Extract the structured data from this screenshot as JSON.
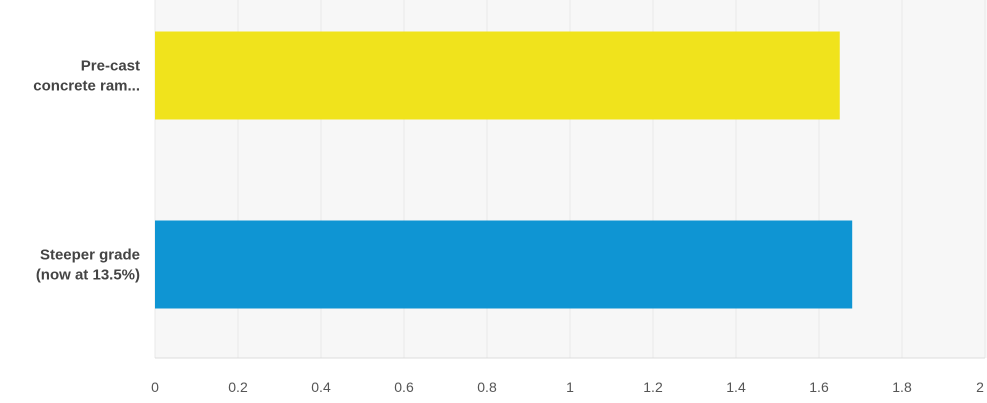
{
  "chart_data": {
    "type": "bar",
    "orientation": "horizontal",
    "categories": [
      [
        "Pre-cast",
        "concrete ram..."
      ],
      [
        "Steeper grade",
        "(now at 13.5%)"
      ]
    ],
    "values": [
      1.65,
      1.68
    ],
    "bar_colors": [
      "#f0e31c",
      "#0f95d3"
    ],
    "xlim": [
      0,
      2
    ],
    "x_ticks": [
      "0",
      "0.2",
      "0.4",
      "0.6",
      "0.8",
      "1",
      "1.2",
      "1.4",
      "1.6",
      "1.8",
      "2"
    ],
    "grid": true,
    "grid_color": "#e8e8e8",
    "background": "#f7f7f7",
    "title": "",
    "xlabel": "",
    "ylabel": ""
  }
}
